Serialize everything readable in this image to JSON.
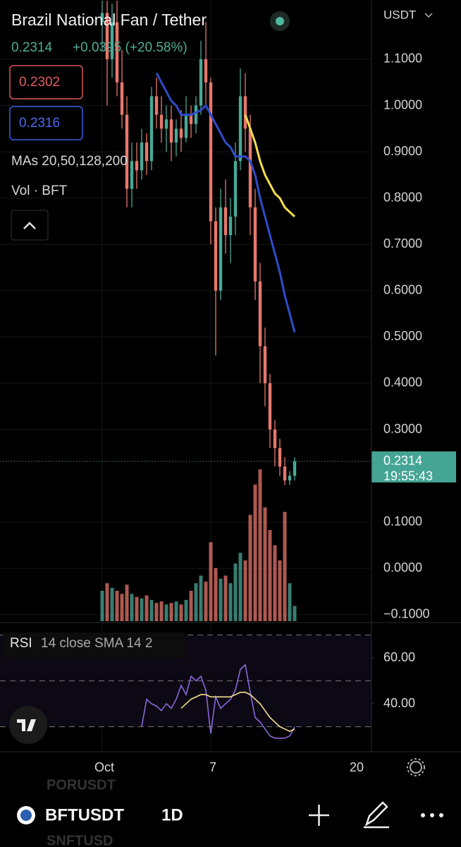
{
  "header": {
    "title": "Brazil National Fan / Tether",
    "price": "0.2314",
    "change": "+0.0395 (+20.58%)",
    "bid": "0.2302",
    "ask": "0.2316",
    "indicators": "MAs 20,50,128,200",
    "volume_label": "Vol · BFT",
    "axis_unit": "USDT"
  },
  "chart_data": {
    "type": "candlestick",
    "categories": [
      "Oct",
      null,
      null,
      null,
      null,
      null,
      null,
      null,
      null,
      null,
      null,
      null,
      null,
      null,
      null,
      null,
      null,
      null,
      null,
      null,
      null,
      null,
      "7",
      null,
      null,
      null,
      null,
      null,
      null,
      null,
      null,
      null,
      null,
      null,
      null,
      null,
      null,
      null,
      null,
      null
    ],
    "x_end_label": "20",
    "open": [
      1.18,
      1.2,
      1.1,
      1.18,
      1.05,
      0.98,
      0.82,
      0.88,
      0.86,
      0.92,
      0.88,
      1.02,
      0.98,
      0.95,
      0.97,
      0.92,
      0.95,
      0.93,
      0.98,
      0.96,
      1.0,
      1.1,
      1.05,
      0.75,
      0.6,
      0.78,
      0.72,
      0.76,
      0.88,
      1.02,
      0.95,
      0.78,
      0.62,
      0.48,
      0.4,
      0.3,
      0.26,
      0.22,
      0.19,
      0.2
    ],
    "high": [
      1.25,
      1.25,
      1.22,
      1.24,
      1.12,
      1.02,
      0.92,
      0.92,
      0.95,
      0.94,
      1.04,
      1.06,
      1.02,
      1.0,
      1.0,
      0.97,
      0.99,
      1.02,
      1.0,
      1.02,
      1.14,
      1.18,
      1.06,
      0.78,
      0.82,
      0.84,
      0.8,
      0.92,
      1.08,
      1.07,
      0.98,
      0.82,
      0.66,
      0.52,
      0.42,
      0.32,
      0.28,
      0.24,
      0.21,
      0.24
    ],
    "low": [
      1.12,
      1.0,
      1.06,
      1.02,
      0.95,
      0.78,
      0.78,
      0.82,
      0.84,
      0.85,
      0.86,
      0.95,
      0.92,
      0.9,
      0.88,
      0.89,
      0.9,
      0.92,
      0.93,
      0.94,
      0.98,
      1.0,
      0.7,
      0.46,
      0.58,
      0.68,
      0.66,
      0.72,
      0.86,
      0.9,
      0.72,
      0.58,
      0.4,
      0.35,
      0.26,
      0.22,
      0.2,
      0.18,
      0.18,
      0.19
    ],
    "close": [
      1.2,
      1.1,
      1.18,
      1.05,
      0.98,
      0.82,
      0.88,
      0.86,
      0.92,
      0.88,
      1.02,
      0.98,
      0.95,
      0.97,
      0.92,
      0.95,
      0.93,
      0.98,
      0.96,
      1.0,
      1.1,
      1.05,
      0.75,
      0.6,
      0.78,
      0.72,
      0.76,
      0.88,
      1.02,
      0.95,
      0.78,
      0.62,
      0.48,
      0.4,
      0.3,
      0.26,
      0.22,
      0.19,
      0.2,
      0.2314
    ],
    "volume": [
      20,
      25,
      22,
      20,
      18,
      24,
      18,
      16,
      15,
      17,
      14,
      12,
      13,
      11,
      12,
      13,
      11,
      14,
      20,
      25,
      30,
      26,
      52,
      35,
      28,
      30,
      25,
      38,
      45,
      40,
      70,
      90,
      100,
      75,
      60,
      50,
      40,
      72,
      25,
      10
    ],
    "up_color": "#4aa796",
    "down_color": "#e8776c",
    "series": [
      {
        "name": "MA 20",
        "color": "#2f4ccb",
        "values": [
          null,
          null,
          null,
          null,
          null,
          null,
          null,
          null,
          null,
          null,
          null,
          1.07,
          1.05,
          1.03,
          1.01,
          1.0,
          0.98,
          0.98,
          0.98,
          0.985,
          0.99,
          1.0,
          0.98,
          0.96,
          0.94,
          0.92,
          0.91,
          0.89,
          0.89,
          0.89,
          0.88,
          0.85,
          0.8,
          0.76,
          0.72,
          0.68,
          0.64,
          0.59,
          0.55,
          0.51
        ]
      },
      {
        "name": "MA 50",
        "color": "#f3df4c",
        "values": [
          null,
          null,
          null,
          null,
          null,
          null,
          null,
          null,
          null,
          null,
          null,
          null,
          null,
          null,
          null,
          null,
          null,
          null,
          null,
          null,
          null,
          null,
          null,
          null,
          null,
          null,
          null,
          null,
          null,
          0.98,
          0.95,
          0.92,
          0.88,
          0.85,
          0.83,
          0.81,
          0.8,
          0.78,
          0.77,
          0.76
        ]
      }
    ],
    "ylim": [
      -0.114,
      1.228
    ],
    "yticks": [
      {
        "value": 1.1,
        "label": "1.1000"
      },
      {
        "value": 1.0,
        "label": "1.0000"
      },
      {
        "value": 0.9,
        "label": "0.9000"
      },
      {
        "value": 0.8,
        "label": "0.8000"
      },
      {
        "value": 0.7,
        "label": "0.7000"
      },
      {
        "value": 0.6,
        "label": "0.6000"
      },
      {
        "value": 0.5,
        "label": "0.5000"
      },
      {
        "value": 0.4,
        "label": "0.4000"
      },
      {
        "value": 0.3,
        "label": "0.3000"
      },
      {
        "value": 0.1,
        "label": "0.1000"
      },
      {
        "value": 0.0,
        "label": "0.0000"
      },
      {
        "value": -0.1,
        "label": "−0.1000"
      }
    ],
    "last_price": {
      "value": 0.2314,
      "label": "0.2314",
      "countdown": "19:55:43",
      "color": "#45a594"
    },
    "grid": true
  },
  "rsi": {
    "type": "line",
    "label": "RSI",
    "params": "14 close SMA 14 2",
    "series": [
      {
        "name": "RSI",
        "color": "#8a67d8",
        "values": [
          null,
          null,
          null,
          null,
          null,
          null,
          null,
          null,
          30,
          42,
          40,
          39,
          37,
          40,
          38,
          42,
          48,
          44,
          52,
          50,
          52,
          46,
          27,
          43,
          38,
          40,
          42,
          46,
          55,
          57,
          45,
          34,
          32,
          29,
          26,
          25,
          25,
          25,
          26,
          30
        ]
      },
      {
        "name": "SMA",
        "color": "#f5e08a",
        "values": [
          null,
          null,
          null,
          null,
          null,
          null,
          null,
          null,
          null,
          null,
          null,
          null,
          null,
          null,
          null,
          null,
          38,
          40,
          42,
          43,
          44,
          44,
          43,
          43,
          43,
          43,
          43,
          44,
          45,
          45,
          44,
          42,
          40,
          37,
          34,
          32,
          30,
          29,
          28,
          29
        ]
      }
    ],
    "ylim": [
      19.1,
      74.5
    ],
    "yticks": [
      {
        "value": 60,
        "label": "60.00"
      },
      {
        "value": 40,
        "label": "40.00"
      }
    ],
    "bands": [
      70,
      50,
      30
    ]
  },
  "footer": {
    "symbol": "BFTUSDT",
    "interval": "1D",
    "ghost_above": "PORUSDT",
    "ghost_below": "SNFTUSD"
  }
}
